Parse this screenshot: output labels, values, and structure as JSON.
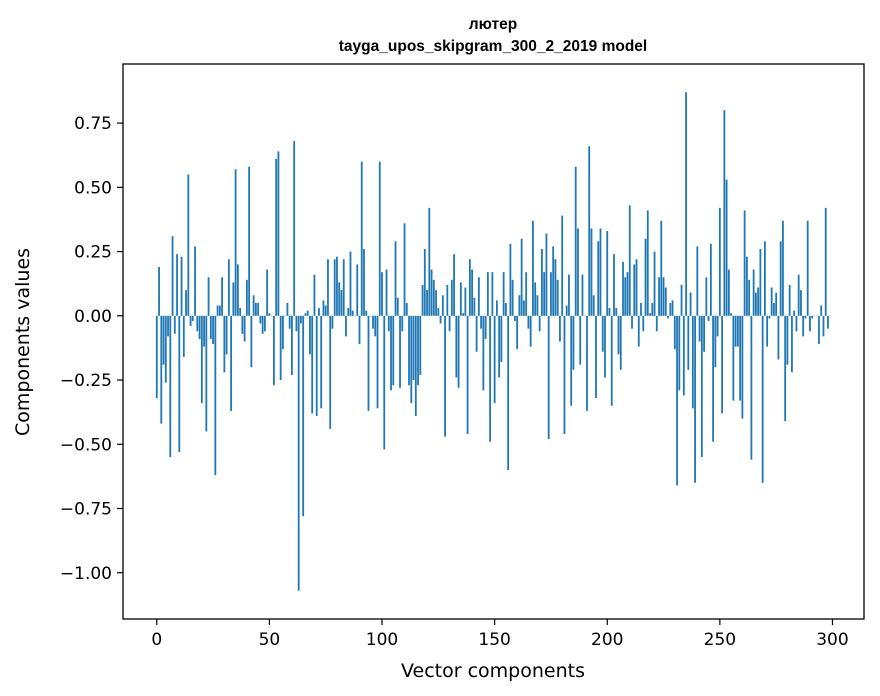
{
  "chart_data": {
    "type": "bar",
    "title": "лютер",
    "subtitle": "tayga_upos_skipgram_300_2_2019 model",
    "xlabel": "Vector components",
    "ylabel": "Components values",
    "xlim": [
      -15,
      314
    ],
    "ylim": [
      -1.18,
      0.98
    ],
    "xticks": [
      0,
      50,
      100,
      150,
      200,
      250,
      300
    ],
    "yticks": [
      -1.0,
      -0.75,
      -0.5,
      -0.25,
      0.0,
      0.25,
      0.5,
      0.75
    ],
    "ytick_labels": [
      "−1.00",
      "−0.75",
      "−0.50",
      "−0.25",
      "0.00",
      "0.25",
      "0.50",
      "0.75"
    ],
    "xtick_labels": [
      "0",
      "50",
      "100",
      "150",
      "200",
      "250",
      "300"
    ],
    "grid": false,
    "bar_color": "#1f77b4",
    "values": [
      -0.32,
      0.19,
      -0.42,
      -0.19,
      -0.26,
      -0.08,
      -0.55,
      0.31,
      -0.07,
      0.24,
      -0.53,
      0.23,
      -0.16,
      0.1,
      0.55,
      -0.04,
      -0.02,
      0.27,
      -0.06,
      -0.09,
      -0.34,
      -0.12,
      -0.45,
      0.15,
      -0.09,
      -0.11,
      -0.62,
      0.04,
      0.04,
      0.15,
      -0.22,
      -0.15,
      0.22,
      -0.37,
      0.13,
      0.57,
      0.2,
      0.03,
      -0.07,
      -0.1,
      0.14,
      0.58,
      -0.2,
      0.08,
      0.05,
      0.05,
      -0.03,
      -0.07,
      -0.06,
      0.18,
      0.01,
      0.0,
      -0.27,
      0.61,
      0.64,
      -0.25,
      -0.13,
      0.0,
      0.05,
      -0.05,
      -0.23,
      0.68,
      -0.06,
      -1.07,
      -0.03,
      -0.78,
      0.01,
      0.02,
      -0.15,
      -0.38,
      0.16,
      -0.39,
      0.03,
      -0.36,
      0.06,
      0.04,
      0.22,
      -0.44,
      -0.05,
      0.22,
      0.23,
      0.13,
      0.1,
      0.22,
      -0.08,
      0.03,
      0.25,
      0.02,
      0.0,
      0.2,
      -0.11,
      0.6,
      0.26,
      0.02,
      -0.37,
      0.0,
      -0.05,
      -0.08,
      -0.36,
      0.6,
      0.17,
      -0.52,
      0.18,
      -0.06,
      -0.29,
      -0.27,
      0.29,
      0.07,
      -0.28,
      -0.06,
      0.36,
      0.05,
      -0.27,
      -0.34,
      -0.25,
      -0.39,
      -0.27,
      -0.23,
      0.12,
      0.26,
      0.1,
      0.42,
      0.18,
      0.14,
      0.1,
      0.03,
      -0.03,
      0.08,
      -0.47,
      0.12,
      -0.06,
      0.14,
      0.24,
      -0.24,
      -0.28,
      0.13,
      0.01,
      0.11,
      -0.46,
      0.22,
      0.18,
      0.07,
      -0.14,
      0.15,
      -0.05,
      -0.29,
      -0.09,
      0.17,
      -0.49,
      0.17,
      -0.34,
      0.06,
      -0.24,
      -0.18,
      0.17,
      0.05,
      -0.6,
      0.28,
      0.14,
      -0.02,
      -0.13,
      0.08,
      0.3,
      0.06,
      0.17,
      -0.05,
      -0.12,
      0.37,
      0.13,
      0.08,
      -0.06,
      0.26,
      0.17,
      0.32,
      -0.48,
      0.17,
      0.27,
      0.22,
      0.14,
      -0.1,
      0.39,
      -0.46,
      0.04,
      0.16,
      -0.35,
      -0.21,
      0.58,
      0.34,
      -0.19,
      0.16,
      0.0,
      -0.37,
      0.66,
      0.34,
      0.08,
      -0.32,
      0.29,
      0.34,
      -0.14,
      -0.24,
      0.33,
      0.03,
      -0.35,
      0.24,
      0.03,
      -0.15,
      -0.21,
      0.21,
      0.15,
      0.17,
      0.43,
      -0.05,
      0.2,
      0.22,
      -0.12,
      0.05,
      -0.06,
      0.3,
      0.41,
      0.01,
      0.05,
      0.25,
      -0.06,
      0.15,
      0.37,
      0.15,
      0.11,
      -0.01,
      0.05,
      0.06,
      -0.13,
      -0.66,
      -0.29,
      0.12,
      -0.31,
      0.87,
      -0.21,
      0.09,
      -0.36,
      -0.65,
      0.27,
      -0.1,
      -0.55,
      -0.14,
      0.15,
      -0.02,
      0.28,
      -0.49,
      -0.2,
      -0.08,
      0.42,
      -0.38,
      0.8,
      0.53,
      0.18,
      0.01,
      -0.33,
      -0.12,
      -0.12,
      -0.33,
      -0.4,
      0.41,
      0.23,
      0.14,
      -0.56,
      0.18,
      0.09,
      0.11,
      0.26,
      -0.65,
      0.29,
      -0.12,
      -0.01,
      0.11,
      0.05,
      0.09,
      -0.17,
      0.29,
      0.37,
      -0.41,
      -0.19,
      0.12,
      -0.22,
      0.02,
      -0.06,
      0.16,
      0.1,
      -0.08,
      -0.01,
      0.37,
      -0.06,
      -0.01,
      0.0,
      0.0,
      -0.11,
      0.04,
      -0.08,
      0.42,
      -0.05,
      0.0
    ]
  }
}
